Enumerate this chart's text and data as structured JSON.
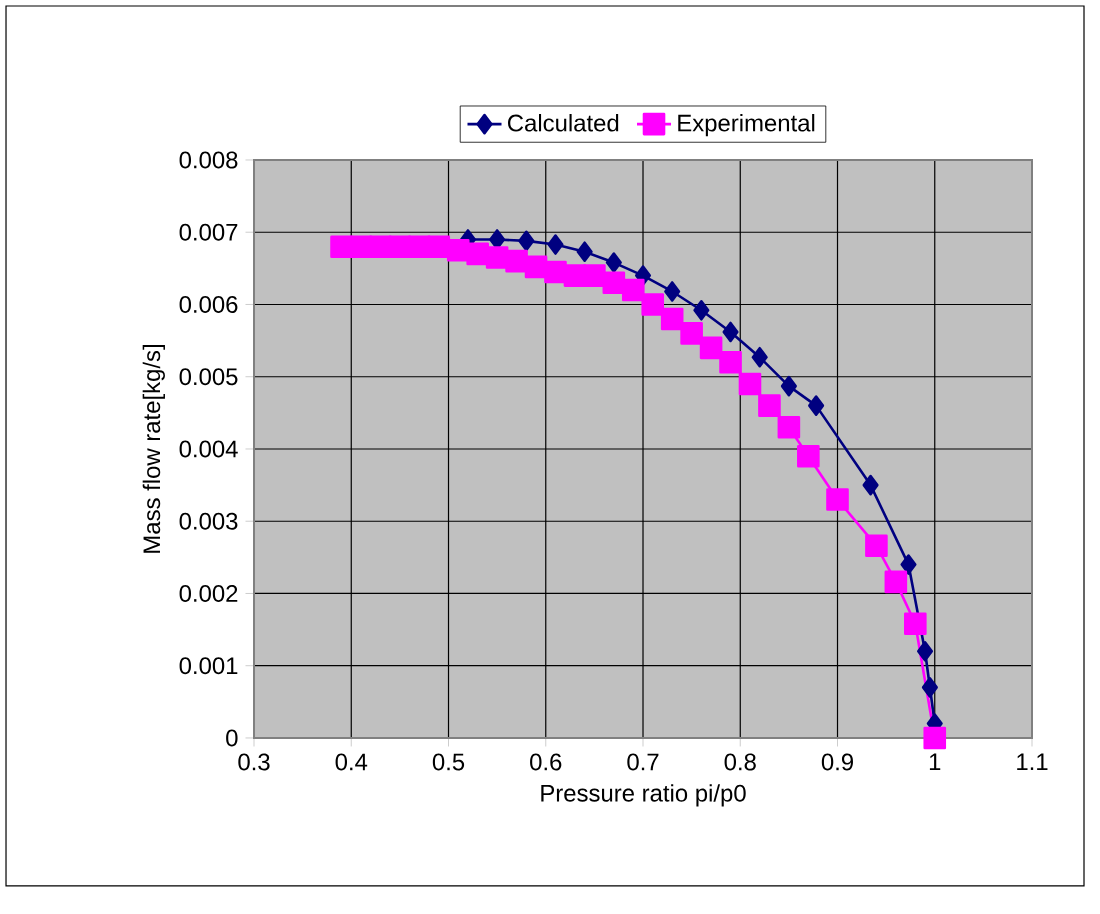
{
  "chart_data": {
    "type": "line",
    "xlabel": "Pressure ratio pi/p0",
    "ylabel": "Mass flow rate[kg/s]",
    "xlim": [
      0.3,
      1.1
    ],
    "xticks": [
      0.3,
      0.4,
      0.5,
      0.6,
      0.7,
      0.8,
      0.9,
      1,
      1.1
    ],
    "ylim": [
      0,
      0.008
    ],
    "yticks": [
      0,
      0.001,
      0.002,
      0.003,
      0.004,
      0.005,
      0.006,
      0.007,
      0.008
    ],
    "grid": true,
    "legend": "top",
    "line_style": "solid",
    "series": [
      {
        "name": "Calculated",
        "color": "#000080",
        "marker": "diamond",
        "x": [
          0.52,
          0.55,
          0.58,
          0.61,
          0.64,
          0.67,
          0.7,
          0.73,
          0.76,
          0.79,
          0.82,
          0.85,
          0.878,
          0.934,
          0.973,
          0.99,
          0.995,
          1.0
        ],
        "values": [
          0.0069,
          0.0069,
          0.00688,
          0.00683,
          0.00673,
          0.00658,
          0.0064,
          0.00618,
          0.00592,
          0.00562,
          0.00527,
          0.00487,
          0.0046,
          0.0035,
          0.0024,
          0.0012,
          0.0007,
          0.0002
        ]
      },
      {
        "name": "Experimental",
        "color": "#ff00ff",
        "marker": "square",
        "x": [
          0.39,
          0.41,
          0.43,
          0.45,
          0.47,
          0.49,
          0.51,
          0.53,
          0.55,
          0.57,
          0.59,
          0.61,
          0.63,
          0.65,
          0.67,
          0.69,
          0.71,
          0.73,
          0.75,
          0.77,
          0.79,
          0.81,
          0.83,
          0.85,
          0.87,
          0.9,
          0.94,
          0.96,
          0.98,
          1.0
        ],
        "values": [
          0.0068,
          0.0068,
          0.0068,
          0.0068,
          0.0068,
          0.0068,
          0.00675,
          0.0067,
          0.00665,
          0.0066,
          0.00652,
          0.00645,
          0.0064,
          0.0064,
          0.0063,
          0.0062,
          0.006,
          0.0058,
          0.0056,
          0.0054,
          0.0052,
          0.0049,
          0.0046,
          0.0043,
          0.0039,
          0.0033,
          0.00266,
          0.00216,
          0.00158,
          0
        ]
      }
    ]
  }
}
